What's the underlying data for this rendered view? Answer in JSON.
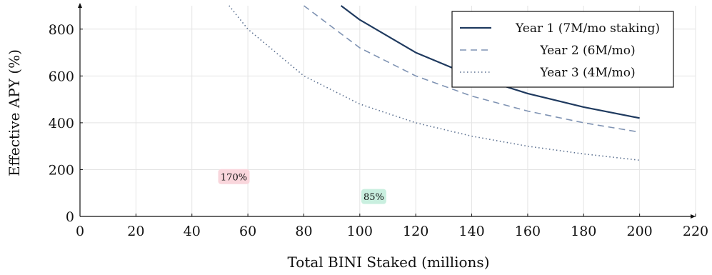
{
  "chart_data": {
    "type": "line",
    "title": "",
    "xlabel": "Total BINI Staked (millions)",
    "ylabel": "Effective APY (%)",
    "xlim": [
      0,
      220
    ],
    "ylim": [
      0,
      900
    ],
    "xticks": [
      0,
      20,
      40,
      60,
      80,
      100,
      120,
      140,
      160,
      180,
      200,
      220
    ],
    "yticks": [
      0,
      200,
      400,
      600,
      800
    ],
    "grid": true,
    "legend_position": "top-right",
    "series": [
      {
        "name": "Year 1 (7M/mo staking)",
        "style": "solid",
        "color": "#1f3a5f",
        "x": [
          93.3,
          100,
          120,
          140,
          160,
          180,
          200
        ],
        "y": [
          900,
          840,
          700,
          600,
          525,
          467,
          420
        ]
      },
      {
        "name": "Year 2 (6M/mo)",
        "style": "dashed",
        "color": "#7f93b3",
        "x": [
          80,
          100,
          120,
          140,
          160,
          180,
          200
        ],
        "y": [
          900,
          720,
          600,
          514,
          450,
          400,
          360
        ]
      },
      {
        "name": "Year 3 (4M/mo)",
        "style": "dotted",
        "color": "#5a6f8f",
        "x": [
          53.3,
          60,
          80,
          100,
          120,
          140,
          160,
          180,
          200
        ],
        "y": [
          900,
          800,
          600,
          480,
          400,
          343,
          300,
          267,
          240
        ]
      }
    ],
    "annotations": [
      {
        "text": "170%",
        "x": 55,
        "y": 170,
        "color": "#f9d6dc"
      },
      {
        "text": "85%",
        "x": 105,
        "y": 85,
        "color": "#c9efdf"
      }
    ]
  }
}
